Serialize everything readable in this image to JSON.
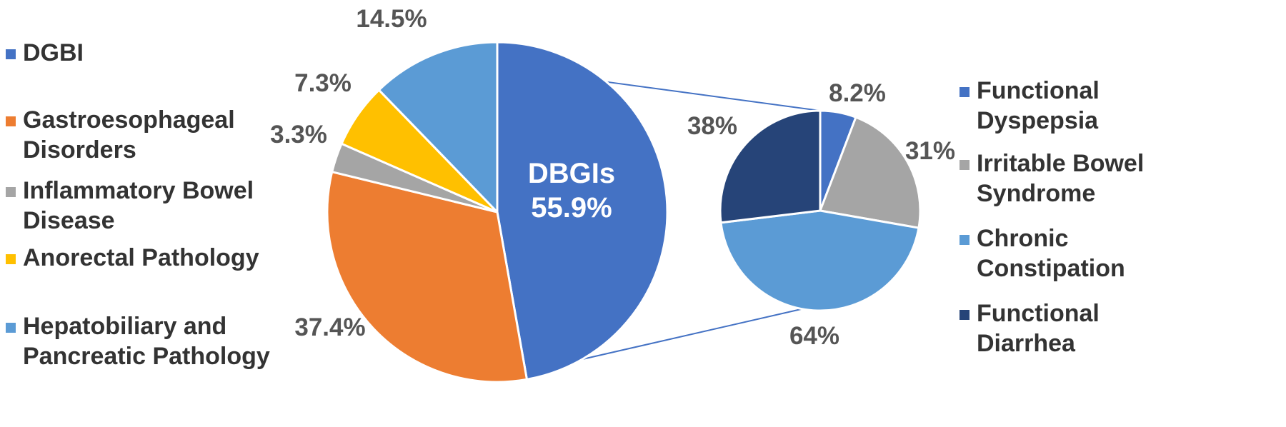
{
  "chart_data": [
    {
      "type": "pie",
      "title": "",
      "categories": [
        "DGBI",
        "Gastroesophageal Disorders",
        "Inflammatory Bowel Disease",
        "Anorectal Pathology",
        "Hepatobiliary and Pancreatic Pathology"
      ],
      "legend_lines": [
        [
          "DGBI"
        ],
        [
          "Gastroesophageal",
          "Disorders"
        ],
        [
          "Inflammatory Bowel",
          "Disease"
        ],
        [
          "Anorectal Pathology"
        ],
        [
          "Hepatobiliary and",
          "Pancreatic Pathology"
        ]
      ],
      "values": [
        55.9,
        37.4,
        3.3,
        7.3,
        14.5
      ],
      "value_labels": [
        "",
        "37.4%",
        "3.3%",
        "7.3%",
        "14.5%"
      ],
      "colors": [
        "#4472C4",
        "#ED7D31",
        "#A5A5A5",
        "#FFC000",
        "#5B9BD5"
      ],
      "legend_position": "left",
      "center_label": [
        "DBGIs",
        "55.9%"
      ]
    },
    {
      "type": "pie",
      "title": "",
      "categories": [
        "Functional Dyspepsia",
        "Irritable Bowel Syndrome",
        "Chronic Constipation",
        "Functional Diarrhea"
      ],
      "legend_lines": [
        [
          "Functional",
          "Dyspepsia"
        ],
        [
          "Irritable Bowel",
          "Syndrome"
        ],
        [
          "Chronic",
          "Constipation"
        ],
        [
          "Functional",
          "Diarrhea"
        ]
      ],
      "values": [
        8.2,
        31,
        64,
        38
      ],
      "value_labels": [
        "8.2%",
        "31%",
        "64%",
        "38%"
      ],
      "colors": [
        "#4472C4",
        "#A5A5A5",
        "#5B9BD5",
        "#264478"
      ],
      "legend_position": "right"
    }
  ]
}
